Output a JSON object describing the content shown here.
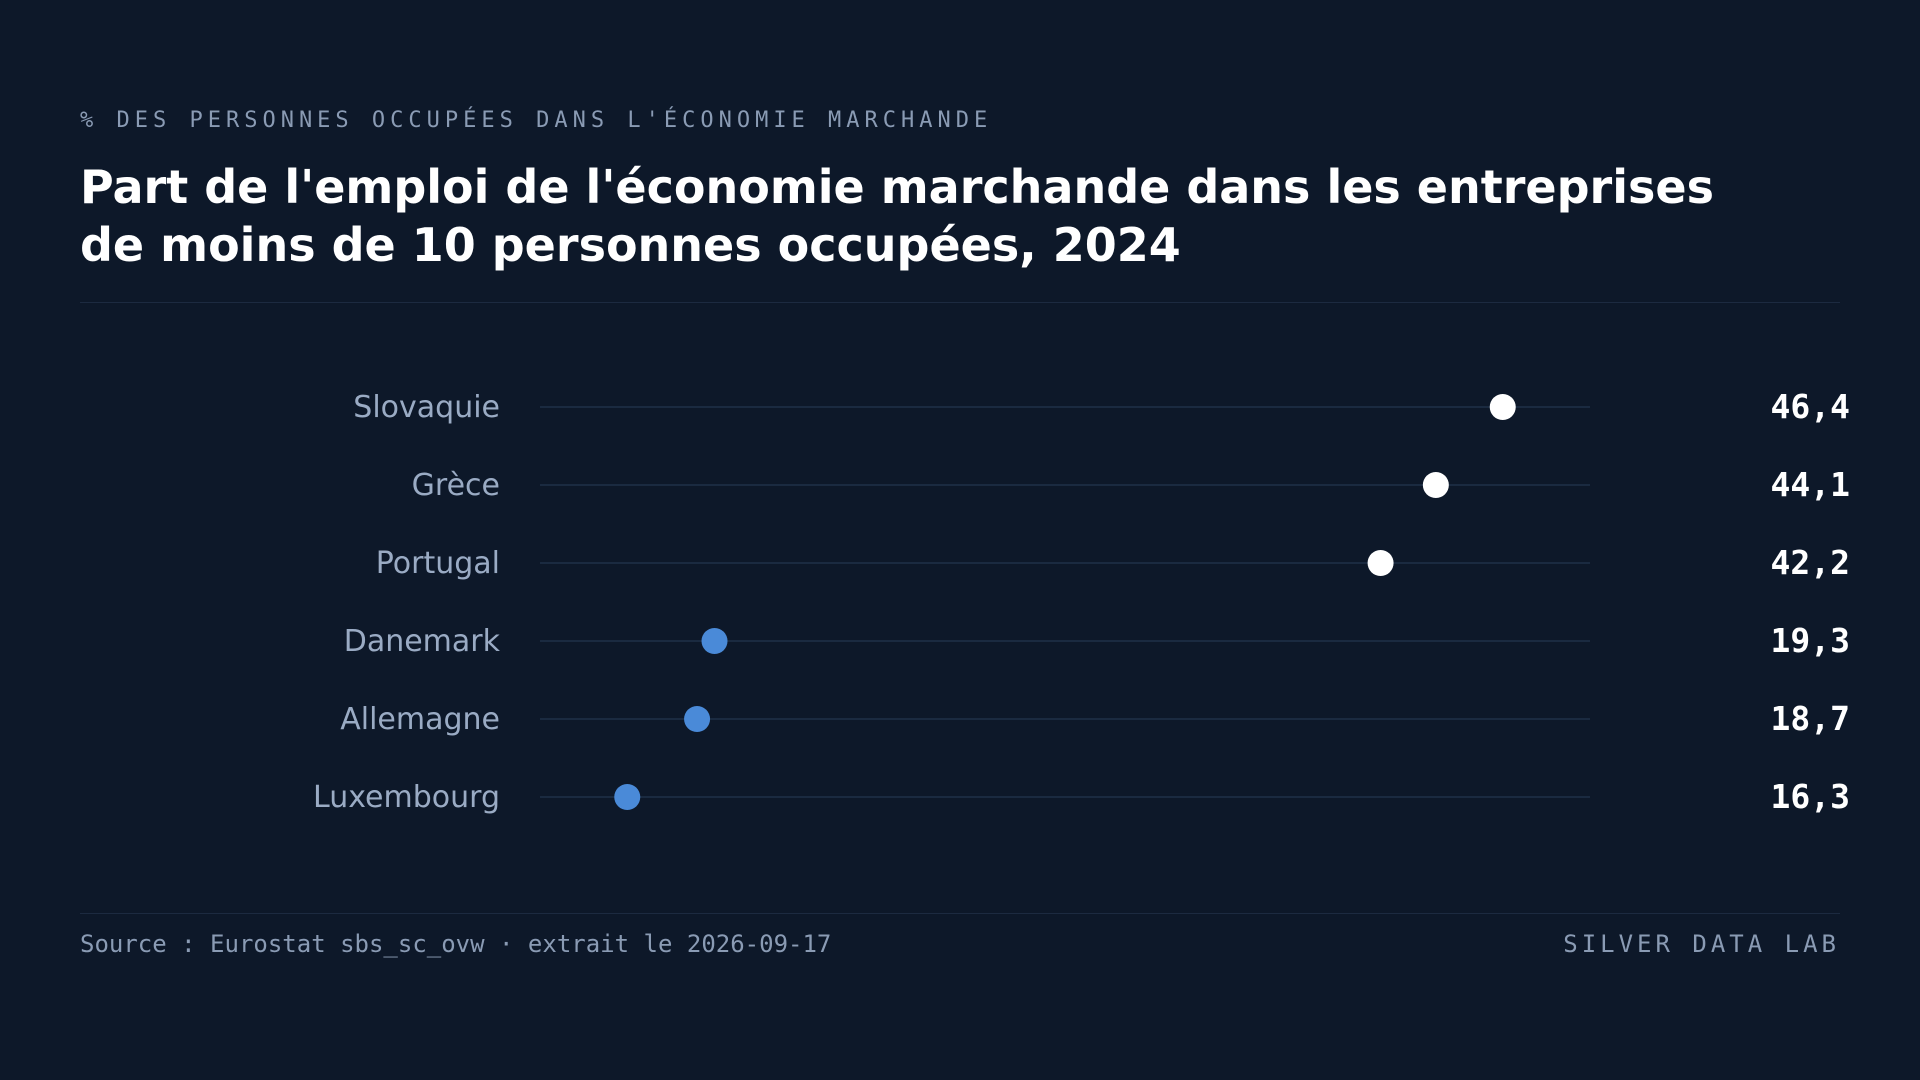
{
  "header": {
    "eyebrow": "% DES PERSONNES OCCUPÉES DANS L'ÉCONOMIE MARCHANDE",
    "title": "Part de l'emploi de l'économie marchande dans les entreprises de moins de 10 personnes occupées, 2024"
  },
  "footer": {
    "source": "Source : Eurostat sbs_sc_ovw · extrait le 2026-09-17",
    "brand": "SILVER DATA LAB"
  },
  "colors": {
    "background": "#0d1829",
    "highlight_dot": "#ffffff",
    "secondary_dot": "#4a8ad8",
    "track": "#1f3048",
    "label": "#9aabc4",
    "value": "#ffffff"
  },
  "chart_data": {
    "type": "dot",
    "title": "Part de l'emploi de l'économie marchande dans les entreprises de moins de 10 personnes occupées, 2024",
    "subtitle": "% DES PERSONNES OCCUPÉES DANS L'ÉCONOMIE MARCHANDE",
    "categories": [
      "Slovaquie",
      "Grèce",
      "Portugal",
      "Danemark",
      "Allemagne",
      "Luxembourg"
    ],
    "values": [
      46.4,
      44.1,
      42.2,
      19.3,
      18.7,
      16.3
    ],
    "value_labels": [
      "46,4",
      "44,1",
      "42,2",
      "19,3",
      "18,7",
      "16,3"
    ],
    "highlight": [
      true,
      true,
      true,
      false,
      false,
      false
    ],
    "xlim": [
      13.3,
      49.4
    ],
    "grid": false,
    "legend": "none"
  }
}
